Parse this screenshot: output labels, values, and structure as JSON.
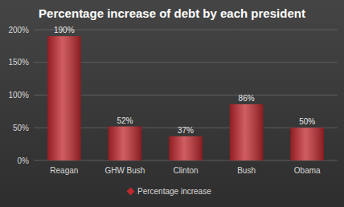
{
  "chart_data": {
    "type": "bar",
    "title": "Percentage increase of debt by each president",
    "categories": [
      "Reagan",
      "GHW Bush",
      "Clinton",
      "Bush",
      "Obama"
    ],
    "series": [
      {
        "name": "Percentage increase",
        "color": "#c0282d",
        "values": [
          190,
          52,
          37,
          86,
          50
        ],
        "value_labels": [
          "190%",
          "52%",
          "37%",
          "86%",
          "50%"
        ]
      }
    ],
    "ylim": [
      0,
      200
    ],
    "yticks": [
      {
        "value": 0,
        "label": "0%"
      },
      {
        "value": 50,
        "label": "50%"
      },
      {
        "value": 100,
        "label": "100%"
      },
      {
        "value": 150,
        "label": "150%"
      },
      {
        "value": 200,
        "label": "200%"
      }
    ],
    "grid": true,
    "legend": "bottom",
    "data_labels": true
  }
}
